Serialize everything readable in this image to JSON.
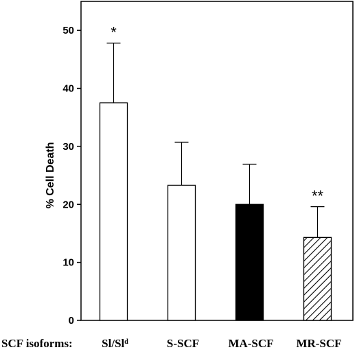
{
  "chart_data": {
    "type": "bar",
    "xlabel": "SCF isoforms:",
    "ylabel": "% Cell Death",
    "ylim": [
      0,
      55
    ],
    "yticks": [
      0,
      10,
      20,
      30,
      40,
      50
    ],
    "categories": [
      "Sl/Sl",
      "S-SCF",
      "MA-SCF",
      "MR-SCF"
    ],
    "category_superscripts": [
      "d",
      "",
      "",
      ""
    ],
    "values": [
      37.5,
      23.3,
      20.0,
      14.3
    ],
    "error_upper": [
      10.3,
      7.4,
      6.9,
      5.3
    ],
    "bar_fills": [
      "white",
      "white",
      "black",
      "hatched"
    ],
    "annotations": [
      "*",
      "",
      "",
      "**"
    ],
    "grid": false
  }
}
